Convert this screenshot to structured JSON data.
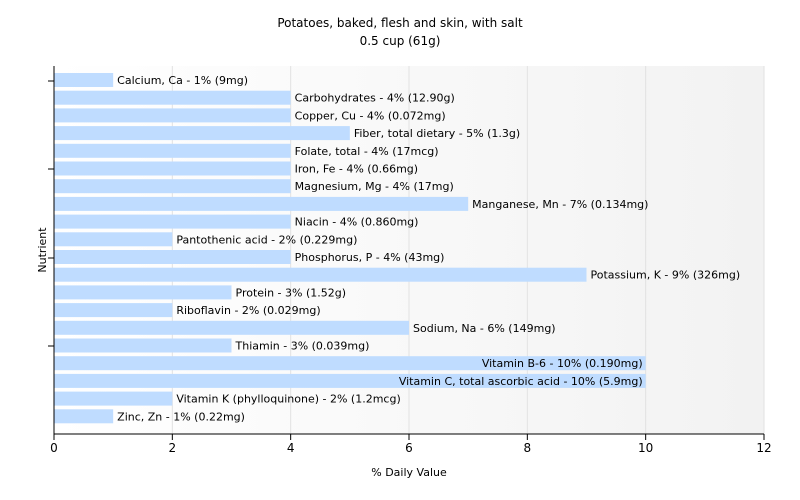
{
  "chart_data": {
    "type": "bar",
    "orientation": "horizontal",
    "title": "Potatoes, baked, flesh and skin, with salt",
    "subtitle": "0.5 cup (61g)",
    "xlabel": "% Daily Value",
    "ylabel": "Nutrient",
    "xlim": [
      0,
      12
    ],
    "x_ticks": [
      0,
      2,
      4,
      6,
      8,
      10,
      12
    ],
    "grid": "vertical",
    "bar_color": "#bfdcff",
    "categories": [
      "Calcium, Ca",
      "Carbohydrates",
      "Copper, Cu",
      "Fiber, total dietary",
      "Folate, total",
      "Iron, Fe",
      "Magnesium, Mg",
      "Manganese, Mn",
      "Niacin",
      "Pantothenic acid",
      "Phosphorus, P",
      "Potassium, K",
      "Protein",
      "Riboflavin",
      "Sodium, Na",
      "Thiamin",
      "Vitamin B-6",
      "Vitamin C, total ascorbic acid",
      "Vitamin K (phylloquinone)",
      "Zinc, Zn"
    ],
    "values": [
      1,
      4,
      4,
      5,
      4,
      4,
      4,
      7,
      4,
      2,
      4,
      9,
      3,
      2,
      6,
      3,
      10,
      10,
      2,
      1
    ],
    "labels": [
      "Calcium, Ca - 1% (9mg)",
      "Carbohydrates - 4% (12.90g)",
      "Copper, Cu - 4% (0.072mg)",
      "Fiber, total dietary - 5% (1.3g)",
      "Folate, total - 4% (17mcg)",
      "Iron, Fe - 4% (0.66mg)",
      "Magnesium, Mg - 4% (17mg)",
      "Manganese, Mn - 7% (0.134mg)",
      "Niacin - 4% (0.860mg)",
      "Pantothenic acid - 2% (0.229mg)",
      "Phosphorus, P - 4% (43mg)",
      "Potassium, K - 9% (326mg)",
      "Protein - 3% (1.52g)",
      "Riboflavin - 2% (0.029mg)",
      "Sodium, Na - 6% (149mg)",
      "Thiamin - 3% (0.039mg)",
      "Vitamin B-6 - 10% (0.190mg)",
      "Vitamin C, total ascorbic acid - 10% (5.9mg)",
      "Vitamin K (phylloquinone) - 2% (1.2mcg)",
      "Zinc, Zn - 1% (0.22mg)"
    ]
  }
}
